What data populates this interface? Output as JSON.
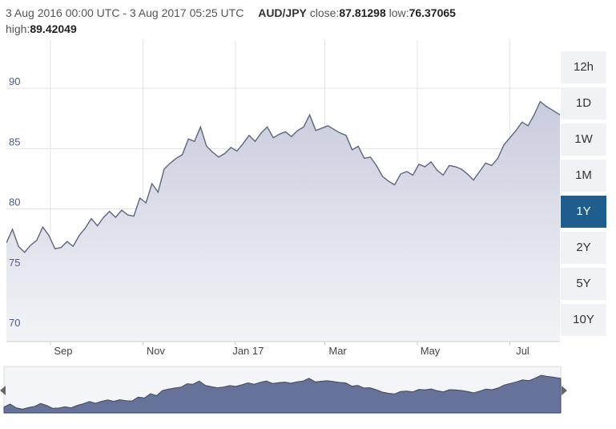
{
  "header": {
    "range": "3 Aug 2016 00:00 UTC - 3 Aug 2017 05:25 UTC",
    "pair": "AUD/JPY",
    "close_label": "close:",
    "close_value": "87.81298",
    "low_label": "low:",
    "low_value": "76.37065",
    "high_label": "high:",
    "high_value": "89.42049"
  },
  "timeframes": [
    {
      "label": "12h",
      "active": false
    },
    {
      "label": "1D",
      "active": false
    },
    {
      "label": "1W",
      "active": false
    },
    {
      "label": "1M",
      "active": false
    },
    {
      "label": "1Y",
      "active": true
    },
    {
      "label": "2Y",
      "active": false
    },
    {
      "label": "5Y",
      "active": false
    },
    {
      "label": "10Y",
      "active": false
    }
  ],
  "chart_data": {
    "type": "area",
    "title": "",
    "xlabel": "",
    "ylabel": "",
    "ylim": [
      69,
      94
    ],
    "xlim": [
      "2016-08-03",
      "2017-08-03"
    ],
    "y_ticks": [
      70,
      75,
      80,
      85,
      90
    ],
    "x_ticks": [
      {
        "date": "2016-09-01",
        "label": "Sep"
      },
      {
        "date": "2016-11-01",
        "label": "Nov"
      },
      {
        "date": "2017-01-01",
        "label": "Jan 17"
      },
      {
        "date": "2017-03-01",
        "label": "Mar"
      },
      {
        "date": "2017-05-01",
        "label": "May"
      },
      {
        "date": "2017-07-01",
        "label": "Jul"
      }
    ],
    "grid": true,
    "colors": {
      "line": "#5b6680",
      "fill_top": "#c9ccdd",
      "fill_bottom": "#f3f4f8",
      "grid": "#e3e3e3",
      "nav_fill": "#65739a",
      "nav_line": "#3e4660"
    },
    "series": [
      {
        "x": [
          "2016-08-03",
          "2016-08-07",
          "2016-08-11",
          "2016-08-15",
          "2016-08-19",
          "2016-08-23",
          "2016-08-27",
          "2016-08-31",
          "2016-09-04",
          "2016-09-08",
          "2016-09-12",
          "2016-09-16",
          "2016-09-20",
          "2016-09-24",
          "2016-09-28",
          "2016-10-02",
          "2016-10-06",
          "2016-10-10",
          "2016-10-14",
          "2016-10-18",
          "2016-10-22",
          "2016-10-26",
          "2016-10-30",
          "2016-11-03",
          "2016-11-07",
          "2016-11-11",
          "2016-11-15",
          "2016-11-19",
          "2016-11-23",
          "2016-11-27",
          "2016-12-01",
          "2016-12-05",
          "2016-12-09",
          "2016-12-13",
          "2016-12-17",
          "2016-12-21",
          "2016-12-25",
          "2016-12-29",
          "2017-01-02",
          "2017-01-06",
          "2017-01-10",
          "2017-01-14",
          "2017-01-18",
          "2017-01-22",
          "2017-01-26",
          "2017-01-30",
          "2017-02-03",
          "2017-02-07",
          "2017-02-11",
          "2017-02-15",
          "2017-02-19",
          "2017-02-23",
          "2017-02-27",
          "2017-03-03",
          "2017-03-07",
          "2017-03-11",
          "2017-03-15",
          "2017-03-19",
          "2017-03-23",
          "2017-03-27",
          "2017-03-31",
          "2017-04-04",
          "2017-04-08",
          "2017-04-12",
          "2017-04-16",
          "2017-04-20",
          "2017-04-24",
          "2017-04-28",
          "2017-05-02",
          "2017-05-06",
          "2017-05-10",
          "2017-05-14",
          "2017-05-18",
          "2017-05-22",
          "2017-05-26",
          "2017-05-30",
          "2017-06-03",
          "2017-06-07",
          "2017-06-11",
          "2017-06-15",
          "2017-06-19",
          "2017-06-23",
          "2017-06-27",
          "2017-07-01",
          "2017-07-05",
          "2017-07-09",
          "2017-07-13",
          "2017-07-17",
          "2017-07-21",
          "2017-07-25",
          "2017-07-29",
          "2017-08-03"
        ],
        "y": [
          77.2,
          78.3,
          76.9,
          76.4,
          77.0,
          77.4,
          78.5,
          77.8,
          76.7,
          76.8,
          77.3,
          76.9,
          77.8,
          78.4,
          79.2,
          78.6,
          79.3,
          79.8,
          79.3,
          79.9,
          79.5,
          79.4,
          80.9,
          80.5,
          82.1,
          81.4,
          83.3,
          83.8,
          84.2,
          84.5,
          85.8,
          85.6,
          86.8,
          85.2,
          84.7,
          84.3,
          84.6,
          85.1,
          84.8,
          85.4,
          86.1,
          85.6,
          86.3,
          86.8,
          85.9,
          86.2,
          86.4,
          86.0,
          86.5,
          86.8,
          87.8,
          86.5,
          86.7,
          86.9,
          86.6,
          86.3,
          86.1,
          84.9,
          85.2,
          84.2,
          84.3,
          83.6,
          82.7,
          82.3,
          82.0,
          82.9,
          83.1,
          82.8,
          83.7,
          83.5,
          83.9,
          83.2,
          82.8,
          83.6,
          83.5,
          83.3,
          82.9,
          82.4,
          83.1,
          83.8,
          83.6,
          84.2,
          85.3,
          85.9,
          86.5,
          87.2,
          86.9,
          87.8,
          88.9,
          88.5,
          88.2,
          87.8
        ]
      }
    ]
  }
}
